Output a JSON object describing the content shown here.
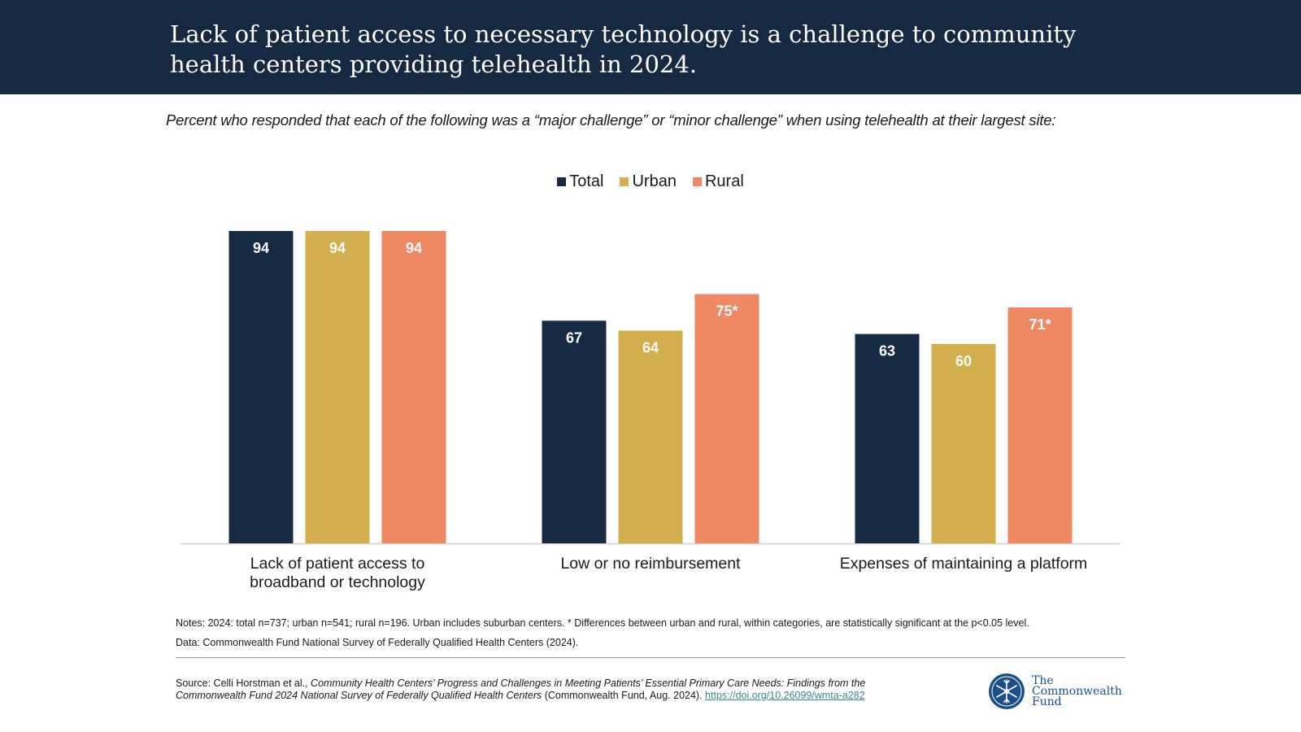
{
  "header": {
    "title": "Lack of patient access to necessary technology is a challenge to community health centers providing telehealth in 2024."
  },
  "subtitle": "Percent who responded that each of the following was a “major challenge” or “minor challenge” when using telehealth at their largest site:",
  "colors": {
    "header_bg": "#152a42",
    "total": "#172a44",
    "urban": "#d2ae4d",
    "rural": "#ef8964"
  },
  "chart_data": {
    "type": "bar",
    "categories": [
      "Lack of patient access to broadband or technology",
      "Low or no reimbursement",
      "Expenses of maintaining a platform"
    ],
    "category_lines": [
      [
        "Lack of patient access to",
        "broadband or technology"
      ],
      [
        "Low or no reimbursement"
      ],
      [
        "Expenses of maintaining a platform"
      ]
    ],
    "series": [
      {
        "name": "Total",
        "values": [
          94,
          67,
          63
        ],
        "labels": [
          "94",
          "67",
          "63"
        ],
        "color": "#172a44"
      },
      {
        "name": "Urban",
        "values": [
          94,
          64,
          60
        ],
        "labels": [
          "94",
          "64",
          "60"
        ],
        "color": "#d2ae4d"
      },
      {
        "name": "Rural",
        "values": [
          94,
          75,
          71
        ],
        "labels": [
          "94",
          "75*",
          "71*"
        ],
        "color": "#ef8964"
      }
    ],
    "ylim": [
      0,
      100
    ],
    "grid": false,
    "legend": "top-center",
    "xlabel": "",
    "ylabel": ""
  },
  "notes": {
    "line1": "Notes: 2024: total n=737; urban n=541; rural n=196. Urban includes suburban centers. * Differences between urban and rural, within categories, are statistically significant at the p<0.05 level.",
    "line2": "Data: Commonwealth Fund National Survey of Federally Qualified Health Centers (2024)."
  },
  "source": {
    "prefix": "Source: Celli Horstman et al., ",
    "title": "Community Health Centers’ Progress and Challenges in Meeting Patients’ Essential Primary Care Needs: Findings from the Commonwealth Fund 2024 National Survey of Federally Qualified Health Centers",
    "suffix": " (Commonwealth Fund, Aug. 2024). ",
    "link_text": "https://doi.org/10.26099/wmta-a282"
  },
  "logo": {
    "line1": "The",
    "line2": "Commonwealth",
    "line3": "Fund"
  }
}
